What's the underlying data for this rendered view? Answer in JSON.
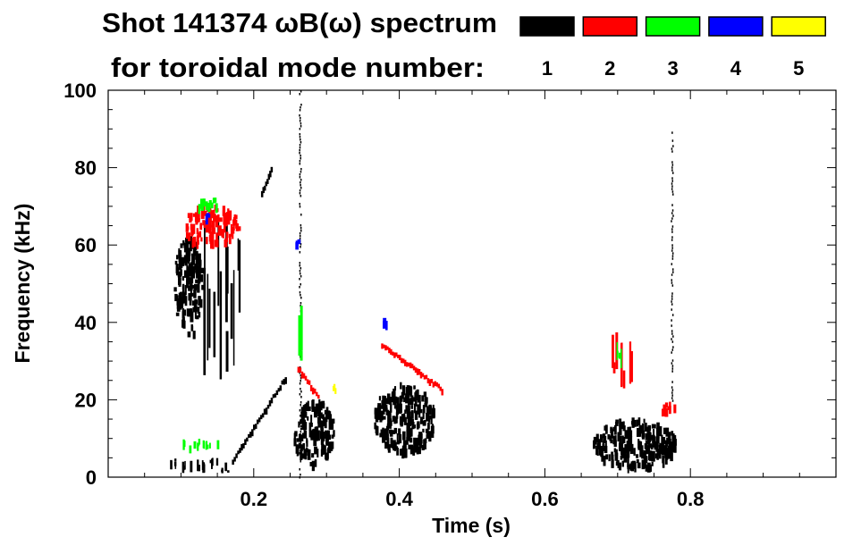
{
  "chart_data": {
    "type": "heatmap",
    "title": "Shot 141374 ωB(ω) spectrum",
    "subtitle": "for toroidal mode number:",
    "xlabel": "Time (s)",
    "ylabel": "Frequency (kHz)",
    "xlim": [
      0.0,
      1.0
    ],
    "ylim": [
      0,
      100
    ],
    "xticks": [
      "0.2",
      "0.4",
      "0.6",
      "0.8"
    ],
    "xtick_values": [
      0.2,
      0.4,
      0.6,
      0.8
    ],
    "yticks": [
      "0",
      "20",
      "40",
      "60",
      "80",
      "100"
    ],
    "ytick_values": [
      0,
      20,
      40,
      60,
      80,
      100
    ],
    "legend": [
      {
        "label": "1",
        "color": "#000000"
      },
      {
        "label": "2",
        "color": "#ff0000"
      },
      {
        "label": "3",
        "color": "#00ff00"
      },
      {
        "label": "4",
        "color": "#0000ff"
      },
      {
        "label": "5",
        "color": "#ffff00"
      }
    ],
    "features": [
      {
        "mode": 1,
        "t": [
          0.09,
          0.13
        ],
        "f": [
          36,
          62
        ],
        "kind": "blob"
      },
      {
        "mode": 1,
        "t": [
          0.13,
          0.18
        ],
        "f": [
          25,
          68
        ],
        "kind": "streaks"
      },
      {
        "mode": 1,
        "t": [
          0.08,
          0.17
        ],
        "f": [
          1,
          5
        ],
        "kind": "streaks"
      },
      {
        "mode": 1,
        "t": [
          0.17,
          0.245
        ],
        "f": [
          4,
          26
        ],
        "kind": "chirp"
      },
      {
        "mode": 1,
        "t": [
          0.21,
          0.225
        ],
        "f": [
          73,
          80
        ],
        "kind": "chirp"
      },
      {
        "mode": 1,
        "t": [
          0.255,
          0.31
        ],
        "f": [
          3,
          20
        ],
        "kind": "blob"
      },
      {
        "mode": 1,
        "t": [
          0.262,
          0.266
        ],
        "f": [
          0,
          100
        ],
        "kind": "line"
      },
      {
        "mode": 1,
        "t": [
          0.365,
          0.45
        ],
        "f": [
          6,
          24
        ],
        "kind": "blob"
      },
      {
        "mode": 1,
        "t": [
          0.665,
          0.78
        ],
        "f": [
          2,
          15
        ],
        "kind": "blob"
      },
      {
        "mode": 1,
        "t": [
          0.773,
          0.776
        ],
        "f": [
          20,
          90
        ],
        "kind": "line"
      },
      {
        "mode": 2,
        "t": [
          0.1,
          0.18
        ],
        "f": [
          60,
          70
        ],
        "kind": "blob"
      },
      {
        "mode": 2,
        "t": [
          0.26,
          0.29
        ],
        "f": [
          28,
          20
        ],
        "kind": "chirp"
      },
      {
        "mode": 2,
        "t": [
          0.375,
          0.46
        ],
        "f": [
          34,
          22
        ],
        "kind": "chirp"
      },
      {
        "mode": 2,
        "t": [
          0.76,
          0.78
        ],
        "f": [
          16,
          19
        ],
        "kind": "blob"
      },
      {
        "mode": 2,
        "t": [
          0.69,
          0.72
        ],
        "f": [
          22,
          38
        ],
        "kind": "streaks"
      },
      {
        "mode": 3,
        "t": [
          0.12,
          0.15
        ],
        "f": [
          69,
          72
        ],
        "kind": "blob"
      },
      {
        "mode": 3,
        "t": [
          0.255,
          0.27
        ],
        "f": [
          30,
          46
        ],
        "kind": "streaks"
      },
      {
        "mode": 3,
        "t": [
          0.695,
          0.705
        ],
        "f": [
          28,
          36
        ],
        "kind": "streaks"
      },
      {
        "mode": 3,
        "t": [
          0.1,
          0.15
        ],
        "f": [
          6,
          10
        ],
        "kind": "streaks"
      },
      {
        "mode": 4,
        "t": [
          0.134,
          0.138
        ],
        "f": [
          66,
          68
        ],
        "kind": "blob"
      },
      {
        "mode": 4,
        "t": [
          0.258,
          0.262
        ],
        "f": [
          59,
          61
        ],
        "kind": "blob"
      },
      {
        "mode": 4,
        "t": [
          0.378,
          0.382
        ],
        "f": [
          39,
          41
        ],
        "kind": "blob"
      },
      {
        "mode": 5,
        "t": [
          0.308,
          0.314
        ],
        "f": [
          22,
          24
        ],
        "kind": "blob"
      }
    ]
  }
}
